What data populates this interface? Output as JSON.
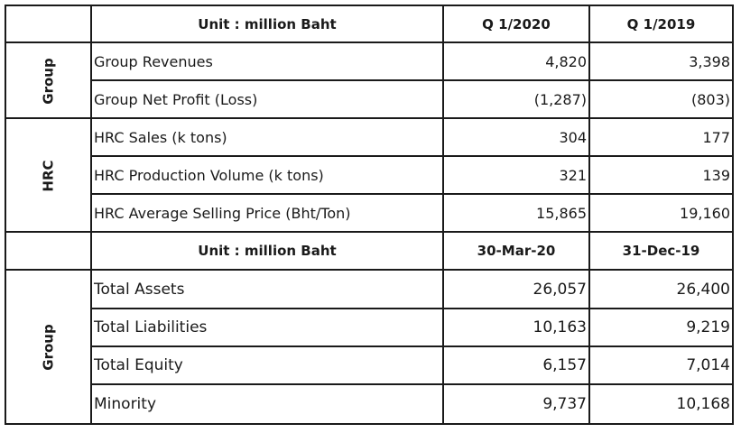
{
  "section1": {
    "header": {
      "unit": "Unit : million Baht",
      "col1": "Q 1/2020",
      "col2": "Q 1/2019"
    },
    "groups": [
      {
        "label": "Group",
        "rows": [
          {
            "label": "Group Revenues",
            "v1": "4,820",
            "v2": "3,398"
          },
          {
            "label": "Group Net Profit (Loss)",
            "v1": "(1,287)",
            "v2": "(803)"
          }
        ]
      },
      {
        "label": "HRC",
        "rows": [
          {
            "label": "HRC Sales (k tons)",
            "v1": "304",
            "v2": "177"
          },
          {
            "label": "HRC Production Volume (k tons)",
            "v1": "321",
            "v2": "139"
          },
          {
            "label": "HRC Average Selling Price (Bht/Ton)",
            "v1": "15,865",
            "v2": "19,160"
          }
        ]
      }
    ]
  },
  "section2": {
    "header": {
      "unit": "Unit : million Baht",
      "col1": "30-Mar-20",
      "col2": "31-Dec-19"
    },
    "groups": [
      {
        "label": "Group",
        "rows": [
          {
            "label": "Total Assets",
            "v1": "26,057",
            "v2": "26,400"
          },
          {
            "label": "Total Liabilities",
            "v1": "10,163",
            "v2": "9,219"
          },
          {
            "label": "Total Equity",
            "v1": "6,157",
            "v2": "7,014"
          },
          {
            "label": "Minority",
            "v1": "9,737",
            "v2": "10,168"
          }
        ]
      }
    ]
  }
}
